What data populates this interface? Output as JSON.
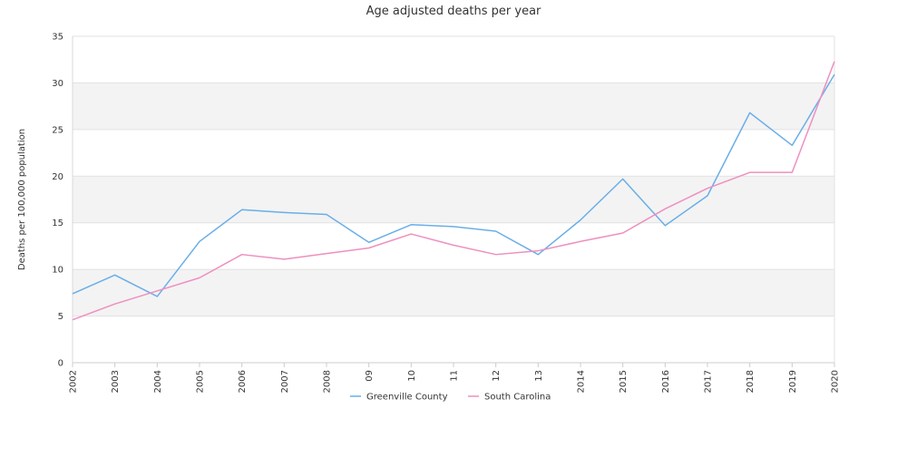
{
  "chart_data": {
    "type": "line",
    "title": "Age adjusted deaths per year",
    "ylabel": "Deaths per 100,000 population",
    "xlabel": "",
    "categories": [
      "2002",
      "2003",
      "2004",
      "2005",
      "2006",
      "2007",
      "2008",
      "09",
      "10",
      "11",
      "12",
      "13",
      "2014",
      "2015",
      "2016",
      "2017",
      "2018",
      "2019",
      "2020"
    ],
    "ylim": [
      0,
      35
    ],
    "yticks": [
      0,
      5,
      10,
      15,
      20,
      25,
      30,
      35
    ],
    "series": [
      {
        "name": "Greenville County",
        "color": "#6aaee8",
        "values": [
          7.4,
          9.4,
          7.1,
          13.0,
          16.4,
          16.1,
          15.9,
          12.9,
          14.8,
          14.6,
          14.1,
          11.6,
          15.3,
          19.7,
          14.7,
          17.9,
          26.8,
          23.3,
          30.9
        ]
      },
      {
        "name": "South Carolina",
        "color": "#ee8fbf",
        "values": [
          4.6,
          6.3,
          7.7,
          9.1,
          11.6,
          11.1,
          11.7,
          12.3,
          13.8,
          12.6,
          11.6,
          12.0,
          13.0,
          13.9,
          16.5,
          18.7,
          20.4,
          20.4,
          32.3
        ]
      }
    ],
    "grid": true,
    "alternating_bands": true,
    "legend_position": "bottom"
  }
}
